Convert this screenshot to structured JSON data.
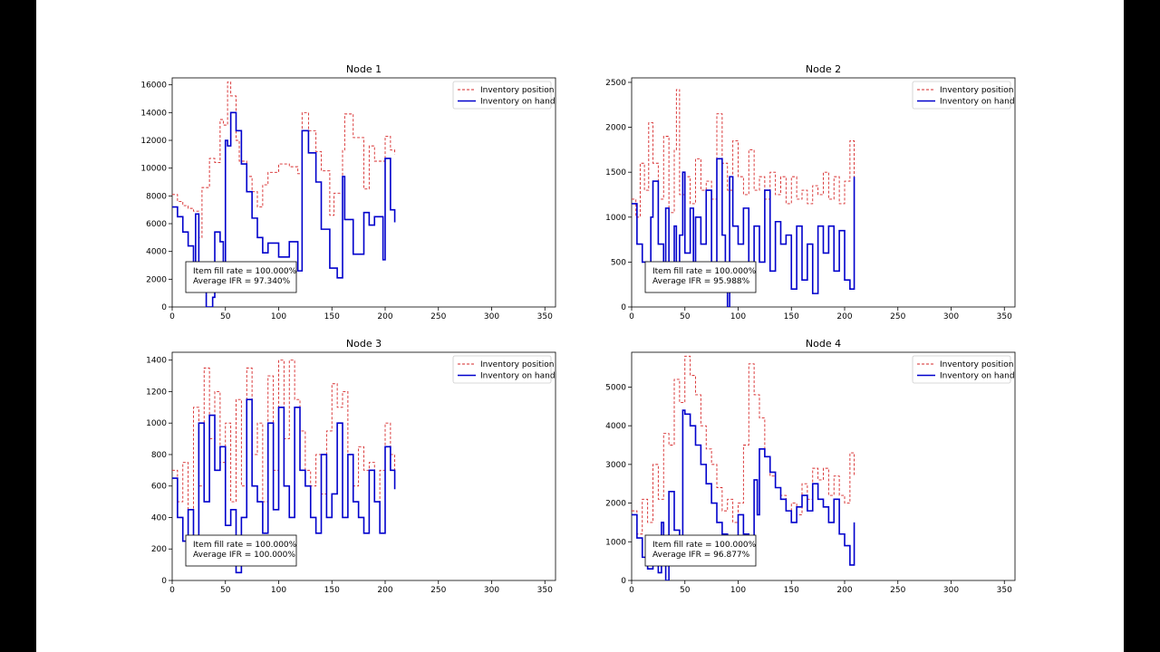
{
  "chart_data": [
    {
      "type": "line",
      "title": "Node 1",
      "xlim": [
        0,
        360
      ],
      "ylim": [
        0,
        16500
      ],
      "xticks": [
        0,
        50,
        100,
        150,
        200,
        250,
        300,
        350
      ],
      "yticks": [
        0,
        2000,
        4000,
        6000,
        8000,
        10000,
        12000,
        14000,
        16000
      ],
      "legend": {
        "position": "top-right",
        "entries": [
          "Inventory position",
          "Inventory on hand"
        ]
      },
      "annotations": [
        "Item fill rate = 100.000%",
        "Average IFR = 97.340%"
      ],
      "series": [
        {
          "name": "Inventory position",
          "color": "#d62728",
          "style": "dashed",
          "x": [
            0,
            5,
            10,
            15,
            20,
            25,
            28,
            35,
            40,
            45,
            48,
            52,
            55,
            60,
            63,
            70,
            75,
            80,
            85,
            90,
            100,
            110,
            118,
            122,
            128,
            135,
            140,
            148,
            152,
            160,
            162,
            170,
            180,
            185,
            190,
            200,
            205,
            209
          ],
          "y": [
            8100,
            7600,
            7300,
            7100,
            6900,
            5000,
            8600,
            10700,
            10400,
            13500,
            13100,
            16200,
            15200,
            12000,
            10500,
            9400,
            8300,
            7200,
            8800,
            9700,
            10300,
            10100,
            9600,
            14000,
            12700,
            11200,
            9800,
            6600,
            8200,
            11300,
            13900,
            12200,
            8500,
            11600,
            10500,
            12300,
            11300,
            11000
          ]
        },
        {
          "name": "Inventory on hand",
          "color": "#0000cc",
          "style": "solid",
          "x": [
            0,
            5,
            10,
            15,
            20,
            22,
            25,
            28,
            32,
            38,
            40,
            45,
            48,
            50,
            52,
            55,
            60,
            65,
            70,
            75,
            80,
            85,
            90,
            100,
            110,
            118,
            122,
            128,
            135,
            140,
            148,
            155,
            160,
            162,
            170,
            180,
            185,
            190,
            198,
            200,
            205,
            209
          ],
          "y": [
            7200,
            6500,
            5400,
            4400,
            2600,
            6700,
            2000,
            1100,
            0,
            700,
            5400,
            4700,
            2300,
            12000,
            11600,
            14000,
            12700,
            10300,
            8300,
            6400,
            5000,
            3900,
            4600,
            3600,
            4700,
            2600,
            12700,
            11100,
            9000,
            5600,
            2800,
            2100,
            9400,
            6300,
            3800,
            6800,
            5900,
            6500,
            3400,
            10700,
            7000,
            6100
          ]
        }
      ]
    },
    {
      "type": "line",
      "title": "Node 2",
      "xlim": [
        0,
        360
      ],
      "ylim": [
        0,
        2550
      ],
      "xticks": [
        0,
        50,
        100,
        150,
        200,
        250,
        300,
        350
      ],
      "yticks": [
        0,
        500,
        1000,
        1500,
        2000,
        2500
      ],
      "legend": {
        "position": "top-right",
        "entries": [
          "Inventory position",
          "Inventory on hand"
        ]
      },
      "annotations": [
        "Item fill rate = 100.000%",
        "Average IFR = 95.988%"
      ],
      "series": [
        {
          "name": "Inventory position",
          "color": "#d62728",
          "style": "dashed",
          "x": [
            0,
            4,
            8,
            12,
            16,
            20,
            25,
            30,
            35,
            40,
            42,
            45,
            50,
            55,
            60,
            65,
            70,
            75,
            80,
            85,
            90,
            95,
            100,
            105,
            110,
            115,
            120,
            125,
            130,
            135,
            140,
            145,
            150,
            155,
            160,
            165,
            170,
            175,
            180,
            185,
            190,
            195,
            200,
            205,
            209
          ],
          "y": [
            1200,
            1000,
            1600,
            1300,
            2050,
            1600,
            1200,
            1900,
            1050,
            1750,
            2420,
            1250,
            1450,
            1150,
            1650,
            1300,
            1400,
            1200,
            2150,
            1600,
            1300,
            1850,
            1450,
            1250,
            1750,
            1300,
            1450,
            1200,
            1500,
            1250,
            1450,
            1150,
            1450,
            1200,
            1300,
            1150,
            1350,
            1250,
            1500,
            1200,
            1450,
            1150,
            1400,
            1850,
            1450
          ]
        },
        {
          "name": "Inventory on hand",
          "color": "#0000cc",
          "style": "solid",
          "x": [
            0,
            5,
            10,
            15,
            18,
            20,
            25,
            30,
            32,
            35,
            40,
            42,
            45,
            48,
            50,
            55,
            58,
            60,
            65,
            70,
            75,
            80,
            85,
            88,
            90,
            92,
            95,
            100,
            105,
            110,
            115,
            120,
            125,
            130,
            135,
            140,
            145,
            150,
            155,
            160,
            165,
            170,
            175,
            180,
            185,
            190,
            195,
            200,
            205,
            209
          ],
          "y": [
            1150,
            700,
            500,
            200,
            1000,
            1400,
            700,
            500,
            1100,
            200,
            900,
            350,
            800,
            1500,
            600,
            1100,
            500,
            1000,
            700,
            1300,
            500,
            1650,
            800,
            400,
            0,
            1450,
            900,
            700,
            1100,
            400,
            900,
            500,
            1300,
            400,
            950,
            700,
            800,
            200,
            900,
            300,
            700,
            150,
            900,
            600,
            900,
            400,
            850,
            300,
            200,
            1450
          ]
        }
      ]
    },
    {
      "type": "line",
      "title": "Node 3",
      "xlim": [
        0,
        360
      ],
      "ylim": [
        0,
        1450
      ],
      "xticks": [
        0,
        50,
        100,
        150,
        200,
        250,
        300,
        350
      ],
      "yticks": [
        0,
        200,
        400,
        600,
        800,
        1000,
        1200,
        1400
      ],
      "legend": {
        "position": "top-right",
        "entries": [
          "Inventory position",
          "Inventory on hand"
        ]
      },
      "annotations": [
        "Item fill rate = 100.000%",
        "Average IFR = 100.000%"
      ],
      "series": [
        {
          "name": "Inventory position",
          "color": "#d62728",
          "style": "dashed",
          "x": [
            0,
            5,
            10,
            15,
            20,
            25,
            30,
            35,
            40,
            45,
            50,
            55,
            60,
            65,
            70,
            75,
            80,
            85,
            90,
            95,
            100,
            105,
            110,
            115,
            120,
            125,
            130,
            135,
            140,
            145,
            150,
            155,
            160,
            165,
            170,
            175,
            180,
            185,
            190,
            195,
            200,
            205,
            209
          ],
          "y": [
            700,
            500,
            750,
            450,
            1100,
            600,
            1350,
            900,
            1200,
            750,
            1000,
            500,
            1150,
            600,
            1350,
            800,
            1000,
            500,
            1300,
            700,
            1400,
            900,
            1400,
            1150,
            950,
            700,
            600,
            800,
            550,
            950,
            1250,
            1100,
            1200,
            800,
            600,
            850,
            700,
            750,
            500,
            700,
            1000,
            800,
            700
          ]
        },
        {
          "name": "Inventory on hand",
          "color": "#0000cc",
          "style": "solid",
          "x": [
            0,
            5,
            10,
            15,
            20,
            25,
            30,
            35,
            40,
            45,
            50,
            55,
            60,
            65,
            70,
            75,
            80,
            85,
            90,
            95,
            100,
            105,
            110,
            115,
            120,
            125,
            130,
            135,
            140,
            145,
            150,
            155,
            160,
            165,
            170,
            175,
            180,
            185,
            190,
            195,
            200,
            205,
            209
          ],
          "y": [
            650,
            400,
            250,
            450,
            200,
            1000,
            500,
            1050,
            700,
            850,
            350,
            450,
            50,
            400,
            1150,
            600,
            500,
            300,
            1000,
            450,
            1100,
            600,
            400,
            1100,
            700,
            600,
            400,
            300,
            800,
            400,
            550,
            1000,
            400,
            800,
            500,
            400,
            300,
            700,
            500,
            300,
            850,
            700,
            580
          ]
        }
      ]
    },
    {
      "type": "line",
      "title": "Node 4",
      "xlim": [
        0,
        360
      ],
      "ylim": [
        0,
        5900
      ],
      "xticks": [
        0,
        50,
        100,
        150,
        200,
        250,
        300,
        350
      ],
      "yticks": [
        0,
        1000,
        2000,
        3000,
        4000,
        5000
      ],
      "legend": {
        "position": "top-right",
        "entries": [
          "Inventory position",
          "Inventory on hand"
        ]
      },
      "annotations": [
        "Item fill rate = 100.000%",
        "Average IFR = 96.877%"
      ],
      "series": [
        {
          "name": "Inventory position",
          "color": "#d62728",
          "style": "dashed",
          "x": [
            0,
            5,
            10,
            15,
            20,
            25,
            30,
            35,
            40,
            45,
            50,
            55,
            60,
            65,
            70,
            75,
            80,
            85,
            90,
            95,
            100,
            105,
            110,
            115,
            120,
            125,
            130,
            135,
            140,
            145,
            150,
            155,
            160,
            165,
            170,
            175,
            180,
            185,
            190,
            195,
            200,
            205,
            209
          ],
          "y": [
            1800,
            1200,
            2100,
            1500,
            3000,
            2100,
            3800,
            3500,
            5200,
            4600,
            5800,
            5300,
            4800,
            4000,
            3400,
            3000,
            2400,
            1800,
            2100,
            1500,
            2000,
            3500,
            5600,
            4800,
            4200,
            3200,
            2700,
            2400,
            2200,
            1800,
            2000,
            1700,
            2500,
            2100,
            2900,
            2600,
            2900,
            2200,
            2700,
            2200,
            2000,
            3300,
            2700
          ]
        },
        {
          "name": "Inventory on hand",
          "color": "#0000cc",
          "style": "solid",
          "x": [
            0,
            5,
            10,
            15,
            20,
            25,
            28,
            30,
            32,
            35,
            40,
            45,
            48,
            50,
            55,
            60,
            65,
            70,
            75,
            80,
            85,
            90,
            95,
            100,
            105,
            110,
            115,
            118,
            120,
            125,
            130,
            135,
            140,
            145,
            150,
            155,
            160,
            165,
            170,
            175,
            180,
            185,
            190,
            195,
            200,
            205,
            209
          ],
          "y": [
            1700,
            1100,
            600,
            300,
            1000,
            200,
            1500,
            800,
            0,
            2300,
            1300,
            700,
            4400,
            4300,
            4000,
            3500,
            3000,
            2500,
            2000,
            1500,
            1200,
            900,
            500,
            1700,
            1200,
            900,
            2600,
            1700,
            3400,
            3200,
            2800,
            2400,
            2100,
            1800,
            1500,
            1900,
            2200,
            1800,
            2500,
            2100,
            1900,
            1500,
            2100,
            1200,
            900,
            400,
            1500
          ]
        }
      ]
    }
  ]
}
